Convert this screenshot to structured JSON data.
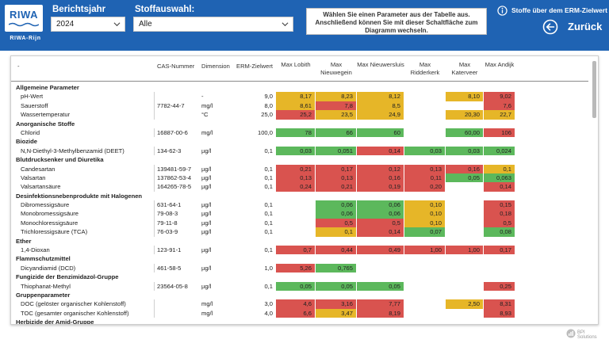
{
  "header": {
    "logo_main": "RIWA",
    "logo_sub": "RIWA-Rijn",
    "berichtsjahr_label": "Berichtsjahr",
    "berichtsjahr_value": "2024",
    "stoff_label": "Stoffauswahl:",
    "stoff_value": "Alle",
    "info_text": "Wählen Sie einen Parameter aus der Tabelle aus. Anschließend können Sie mit dieser Schaltfläche zum Diagramm wechseln.",
    "erm_link": "Stoffe über dem ERM-Zielwert",
    "back_label": "Zurück",
    "brand_color": "#1f63b3"
  },
  "table": {
    "headers": {
      "name": "-",
      "cas": "CAS-Nummer",
      "unit": "Dimension",
      "erm": "ERM-Zielwert",
      "stations": [
        "Max Lobith",
        "Max Nieuwegein",
        "Max Nieuwersluis",
        "Max Ridderkerk",
        "Max Katerveer",
        "Max Andijk"
      ]
    },
    "rows": [
      {
        "type": "group",
        "name": "Allgemeine Parameter"
      },
      {
        "type": "item",
        "name": "pH-Wert",
        "cas": "",
        "unit": "-",
        "erm": "9,0",
        "values": [
          {
            "v": "8,17",
            "c": "yellow"
          },
          {
            "v": "8,23",
            "c": "yellow"
          },
          {
            "v": "8,12",
            "c": "yellow"
          },
          {
            "v": "",
            "c": ""
          },
          {
            "v": "8,10",
            "c": "yellow"
          },
          {
            "v": "9,02",
            "c": "red"
          }
        ]
      },
      {
        "type": "item",
        "name": "Sauerstoff",
        "cas": "7782-44-7",
        "unit": "mg/l",
        "erm": "8,0",
        "values": [
          {
            "v": "8,61",
            "c": "yellow"
          },
          {
            "v": "7,8",
            "c": "red"
          },
          {
            "v": "8,5",
            "c": "yellow"
          },
          {
            "v": "",
            "c": ""
          },
          {
            "v": "",
            "c": ""
          },
          {
            "v": "7,6",
            "c": "red"
          }
        ]
      },
      {
        "type": "item",
        "name": "Wassertemperatur",
        "cas": "",
        "unit": "°C",
        "erm": "25,0",
        "values": [
          {
            "v": "25,2",
            "c": "red"
          },
          {
            "v": "23,5",
            "c": "yellow"
          },
          {
            "v": "24,9",
            "c": "yellow"
          },
          {
            "v": "",
            "c": ""
          },
          {
            "v": "20,30",
            "c": "yellow"
          },
          {
            "v": "22,7",
            "c": "yellow"
          }
        ]
      },
      {
        "type": "group",
        "name": "Anorganische Stoffe"
      },
      {
        "type": "item",
        "name": "Chlorid",
        "cas": "16887-00-6",
        "unit": "mg/l",
        "erm": "100,0",
        "values": [
          {
            "v": "78",
            "c": "green"
          },
          {
            "v": "66",
            "c": "green"
          },
          {
            "v": "60",
            "c": "green"
          },
          {
            "v": "",
            "c": ""
          },
          {
            "v": "60,00",
            "c": "green"
          },
          {
            "v": "106",
            "c": "red"
          }
        ]
      },
      {
        "type": "group",
        "name": "Biozide"
      },
      {
        "type": "item",
        "name": "N,N-Diethyl-3-Methylbenzamid (DEET)",
        "cas": "134-62-3",
        "unit": "µg/l",
        "erm": "0,1",
        "values": [
          {
            "v": "0,03",
            "c": "green"
          },
          {
            "v": "0,051",
            "c": "green"
          },
          {
            "v": "0,14",
            "c": "red"
          },
          {
            "v": "0,03",
            "c": "green"
          },
          {
            "v": "0,03",
            "c": "green"
          },
          {
            "v": "0,024",
            "c": "green"
          }
        ]
      },
      {
        "type": "group",
        "name": "Blutdrucksenker und Diuretika"
      },
      {
        "type": "item",
        "name": "Candesartan",
        "cas": "139481-59-7",
        "unit": "µg/l",
        "erm": "0,1",
        "values": [
          {
            "v": "0,21",
            "c": "red"
          },
          {
            "v": "0,17",
            "c": "red"
          },
          {
            "v": "0,12",
            "c": "red"
          },
          {
            "v": "0,13",
            "c": "red"
          },
          {
            "v": "0,16",
            "c": "red"
          },
          {
            "v": "0,1",
            "c": "yellow"
          }
        ]
      },
      {
        "type": "item",
        "name": "Valsartan",
        "cas": "137862-53-4",
        "unit": "µg/l",
        "erm": "0,1",
        "values": [
          {
            "v": "0,13",
            "c": "red"
          },
          {
            "v": "0,13",
            "c": "red"
          },
          {
            "v": "0,16",
            "c": "red"
          },
          {
            "v": "0,11",
            "c": "red"
          },
          {
            "v": "0,05",
            "c": "green"
          },
          {
            "v": "0,063",
            "c": "green"
          }
        ]
      },
      {
        "type": "item",
        "name": "Valsartansäure",
        "cas": "164265-78-5",
        "unit": "µg/l",
        "erm": "0,1",
        "values": [
          {
            "v": "0,24",
            "c": "red"
          },
          {
            "v": "0,21",
            "c": "red"
          },
          {
            "v": "0,19",
            "c": "red"
          },
          {
            "v": "0,20",
            "c": "red"
          },
          {
            "v": "",
            "c": ""
          },
          {
            "v": "0,14",
            "c": "red"
          }
        ]
      },
      {
        "type": "group",
        "name": "Desinfektionsnebenprodukte mit Halogenen"
      },
      {
        "type": "item",
        "name": "Dibromessigsäure",
        "cas": "631-64-1",
        "unit": "µg/l",
        "erm": "0,1",
        "values": [
          {
            "v": "",
            "c": ""
          },
          {
            "v": "0,06",
            "c": "green"
          },
          {
            "v": "0,06",
            "c": "green"
          },
          {
            "v": "0,10",
            "c": "yellow"
          },
          {
            "v": "",
            "c": ""
          },
          {
            "v": "0,15",
            "c": "red"
          }
        ]
      },
      {
        "type": "item",
        "name": "Monobromessigsäure",
        "cas": "79-08-3",
        "unit": "µg/l",
        "erm": "0,1",
        "values": [
          {
            "v": "",
            "c": ""
          },
          {
            "v": "0,06",
            "c": "green"
          },
          {
            "v": "0,06",
            "c": "green"
          },
          {
            "v": "0,10",
            "c": "yellow"
          },
          {
            "v": "",
            "c": ""
          },
          {
            "v": "0,18",
            "c": "red"
          }
        ]
      },
      {
        "type": "item",
        "name": "Monochloressigsäure",
        "cas": "79-11-8",
        "unit": "µg/l",
        "erm": "0,1",
        "values": [
          {
            "v": "",
            "c": ""
          },
          {
            "v": "0,5",
            "c": "red"
          },
          {
            "v": "0,5",
            "c": "red"
          },
          {
            "v": "0,10",
            "c": "yellow"
          },
          {
            "v": "",
            "c": ""
          },
          {
            "v": "0,5",
            "c": "red"
          }
        ]
      },
      {
        "type": "item",
        "name": "Trichloressigsäure (TCA)",
        "cas": "76-03-9",
        "unit": "µg/l",
        "erm": "0,1",
        "values": [
          {
            "v": "",
            "c": ""
          },
          {
            "v": "0,1",
            "c": "yellow"
          },
          {
            "v": "0,14",
            "c": "red"
          },
          {
            "v": "0,07",
            "c": "green"
          },
          {
            "v": "",
            "c": ""
          },
          {
            "v": "0,08",
            "c": "green"
          }
        ]
      },
      {
        "type": "group",
        "name": "Ether"
      },
      {
        "type": "item",
        "name": "1,4-Dioxan",
        "cas": "123-91-1",
        "unit": "µg/l",
        "erm": "0,1",
        "values": [
          {
            "v": "0,7",
            "c": "red"
          },
          {
            "v": "0,44",
            "c": "red"
          },
          {
            "v": "0,49",
            "c": "red"
          },
          {
            "v": "1,00",
            "c": "red"
          },
          {
            "v": "1,00",
            "c": "red"
          },
          {
            "v": "0,17",
            "c": "red"
          }
        ]
      },
      {
        "type": "group",
        "name": "Flammschutzmittel"
      },
      {
        "type": "item",
        "name": "Dicyandiamid (DCD)",
        "cas": "461-58-5",
        "unit": "µg/l",
        "erm": "1,0",
        "values": [
          {
            "v": "5,26",
            "c": "red"
          },
          {
            "v": "0,765",
            "c": "green"
          },
          {
            "v": "",
            "c": ""
          },
          {
            "v": "",
            "c": ""
          },
          {
            "v": "",
            "c": ""
          },
          {
            "v": "",
            "c": ""
          }
        ]
      },
      {
        "type": "group",
        "name": "Fungizide der Benzimidazol-Gruppe"
      },
      {
        "type": "item",
        "name": "Thiophanat-Methyl",
        "cas": "23564-05-8",
        "unit": "µg/l",
        "erm": "0,1",
        "values": [
          {
            "v": "0,05",
            "c": "green"
          },
          {
            "v": "0,05",
            "c": "green"
          },
          {
            "v": "0,05",
            "c": "green"
          },
          {
            "v": "",
            "c": ""
          },
          {
            "v": "",
            "c": ""
          },
          {
            "v": "0,25",
            "c": "red"
          }
        ]
      },
      {
        "type": "group",
        "name": "Gruppenparameter"
      },
      {
        "type": "item",
        "name": "DOC (gelöster organischer Kohlenstoff)",
        "cas": "",
        "unit": "mg/l",
        "erm": "3,0",
        "values": [
          {
            "v": "4,6",
            "c": "red"
          },
          {
            "v": "3,16",
            "c": "red"
          },
          {
            "v": "7,77",
            "c": "red"
          },
          {
            "v": "",
            "c": ""
          },
          {
            "v": "2,50",
            "c": "yellow"
          },
          {
            "v": "8,31",
            "c": "red"
          }
        ]
      },
      {
        "type": "item",
        "name": "TOC (gesamter organischer Kohlenstoff)",
        "cas": "",
        "unit": "mg/l",
        "erm": "4,0",
        "values": [
          {
            "v": "6,6",
            "c": "red"
          },
          {
            "v": "3,47",
            "c": "yellow"
          },
          {
            "v": "8,19",
            "c": "red"
          },
          {
            "v": "",
            "c": ""
          },
          {
            "v": "",
            "c": ""
          },
          {
            "v": "8,93",
            "c": "red"
          }
        ]
      },
      {
        "type": "group",
        "name": "Herbizide der Amid-Gruppe"
      }
    ]
  },
  "footer": {
    "brand": "BPI Solutions"
  }
}
